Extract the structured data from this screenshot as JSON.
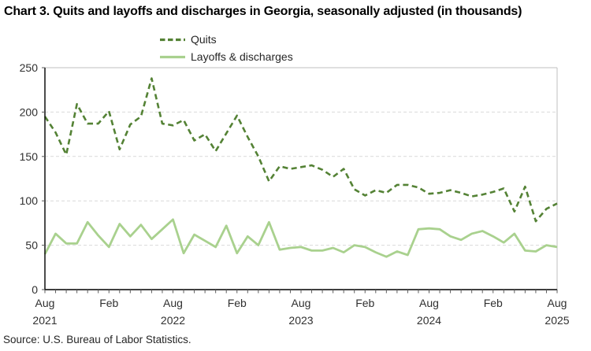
{
  "title": "Chart 3. Quits and layoffs and discharges in Georgia, seasonally adjusted (in thousands)",
  "source": "Source: U.S. Bureau of Labor Statistics.",
  "legend": [
    {
      "label": "Quits",
      "style": "dashed"
    },
    {
      "label": "Layoffs & discharges",
      "style": "solid"
    }
  ],
  "colors": {
    "quits": "#548235",
    "layoffs": "#A9D18E",
    "gridline": "#D9D9D9",
    "frame": "#BFBFBF",
    "axis": "#000000",
    "tick": "#595959",
    "label_text": "#303030"
  },
  "chart_data": {
    "type": "line",
    "title": "Chart 3. Quits and layoffs and discharges in Georgia, seasonally adjusted (in thousands)",
    "xlabel": "",
    "ylabel": "",
    "ylim": [
      0,
      250
    ],
    "y_ticks": [
      0,
      50,
      100,
      150,
      200,
      250
    ],
    "grid": "horizontal-dashed",
    "legend_position": "top-center",
    "x": [
      "Aug 2021",
      "Sep 2021",
      "Oct 2021",
      "Nov 2021",
      "Dec 2021",
      "Jan 2022",
      "Feb 2022",
      "Mar 2022",
      "Apr 2022",
      "May 2022",
      "Jun 2022",
      "Jul 2022",
      "Aug 2022",
      "Sep 2022",
      "Oct 2022",
      "Nov 2022",
      "Dec 2022",
      "Jan 2023",
      "Feb 2023",
      "Mar 2023",
      "Apr 2023",
      "May 2023",
      "Jun 2023",
      "Jul 2023",
      "Aug 2023",
      "Sep 2023",
      "Oct 2023",
      "Nov 2023",
      "Dec 2023",
      "Jan 2024",
      "Feb 2024",
      "Mar 2024",
      "Apr 2024",
      "May 2024",
      "Jun 2024",
      "Jul 2024",
      "Aug 2024",
      "Sep 2024",
      "Oct 2024",
      "Nov 2024",
      "Dec 2024",
      "Jan 2025",
      "Feb 2025",
      "Mar 2025",
      "Apr 2025",
      "May 2025",
      "Jun 2025",
      "Jul 2025",
      "Aug 2025"
    ],
    "x_major_ticks": [
      {
        "index": 0,
        "label": "Aug",
        "year": "2021"
      },
      {
        "index": 6,
        "label": "Feb"
      },
      {
        "index": 12,
        "label": "Aug",
        "year": "2022"
      },
      {
        "index": 18,
        "label": "Feb"
      },
      {
        "index": 24,
        "label": "Aug",
        "year": "2023"
      },
      {
        "index": 30,
        "label": "Feb"
      },
      {
        "index": 36,
        "label": "Aug",
        "year": "2024"
      },
      {
        "index": 42,
        "label": "Feb"
      },
      {
        "index": 48,
        "label": "Aug",
        "year": "2025"
      }
    ],
    "series": [
      {
        "name": "Quits",
        "line_style": "dashed",
        "values": [
          195,
          177,
          152,
          209,
          187,
          187,
          201,
          158,
          186,
          195,
          238,
          187,
          185,
          191,
          168,
          175,
          156,
          176,
          196,
          172,
          150,
          122,
          139,
          136,
          138,
          140,
          135,
          127,
          136,
          113,
          106,
          112,
          109,
          118,
          118,
          115,
          108,
          109,
          112,
          109,
          105,
          107,
          110,
          114,
          88,
          116,
          77,
          91,
          97
        ]
      },
      {
        "name": "Layoffs & discharges",
        "line_style": "solid",
        "values": [
          40,
          63,
          52,
          52,
          76,
          61,
          48,
          74,
          60,
          73,
          57,
          68,
          79,
          41,
          62,
          55,
          48,
          72,
          41,
          60,
          50,
          76,
          45,
          47,
          48,
          44,
          44,
          47,
          42,
          50,
          48,
          42,
          37,
          43,
          39,
          68,
          69,
          68,
          60,
          56,
          63,
          66,
          60,
          53,
          63,
          44,
          43,
          50,
          48
        ]
      }
    ]
  }
}
